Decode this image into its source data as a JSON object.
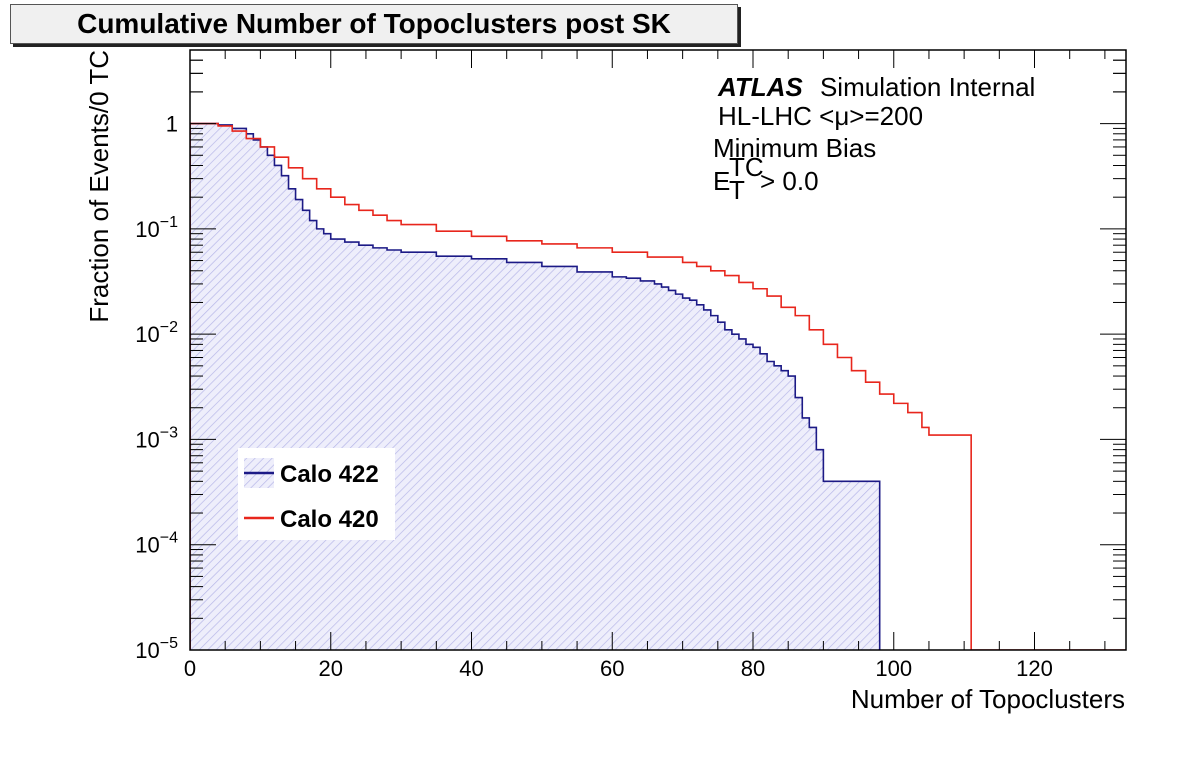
{
  "chart_data": {
    "type": "line",
    "title": "Cumulative Number of Topoclusters post SK",
    "xlabel": "Number of Topoclusters",
    "ylabel": "Fraction of Events/0 TC",
    "xlim": [
      0,
      133
    ],
    "ylim": [
      1e-05,
      5
    ],
    "log_y": true,
    "x_ticks": [
      "0",
      "20",
      "40",
      "60",
      "80",
      "100",
      "120"
    ],
    "x_tick_values": [
      0,
      20,
      40,
      60,
      80,
      100,
      120
    ],
    "y_ticks": [
      {
        "value": 1,
        "base": "1",
        "exp": ""
      },
      {
        "value": 0.1,
        "base": "10",
        "exp": "−1"
      },
      {
        "value": 0.01,
        "base": "10",
        "exp": "−2"
      },
      {
        "value": 0.001,
        "base": "10",
        "exp": "−3"
      },
      {
        "value": 0.0001,
        "base": "10",
        "exp": "−4"
      },
      {
        "value": 1e-05,
        "base": "10",
        "exp": "−5"
      }
    ],
    "annotations": {
      "atlas": "ATLAS",
      "atlas_rest": "Simulation Internal",
      "line2": "HL-LHC <μ>=200",
      "line3": "Minimum Bias",
      "line4_base": "E",
      "line4_sup": "TC",
      "line4_sub": "T",
      "line4_rest": "> 0.0"
    },
    "legend_position": "bottom-left",
    "series": [
      {
        "name": "Calo 422",
        "color": "#1c1a86",
        "fill": "hatched",
        "x": [
          0,
          2,
          4,
          6,
          8,
          9,
          10,
          11,
          12,
          13,
          14,
          15,
          16,
          17,
          18,
          19,
          20,
          22,
          24,
          26,
          28,
          30,
          35,
          40,
          45,
          50,
          55,
          60,
          62,
          64,
          66,
          67,
          68,
          69,
          70,
          71,
          72,
          73,
          74,
          75,
          76,
          77,
          78,
          79,
          80,
          81,
          82,
          83,
          84,
          85,
          86,
          87,
          88,
          89,
          90,
          98
        ],
        "values": [
          1,
          1,
          0.97,
          0.9,
          0.8,
          0.7,
          0.6,
          0.5,
          0.4,
          0.32,
          0.24,
          0.19,
          0.15,
          0.12,
          0.1,
          0.09,
          0.08,
          0.075,
          0.07,
          0.066,
          0.063,
          0.06,
          0.055,
          0.052,
          0.048,
          0.044,
          0.039,
          0.035,
          0.034,
          0.032,
          0.03,
          0.028,
          0.026,
          0.024,
          0.022,
          0.021,
          0.019,
          0.017,
          0.015,
          0.013,
          0.011,
          0.01,
          0.009,
          0.008,
          0.0075,
          0.0065,
          0.0055,
          0.005,
          0.0045,
          0.004,
          0.0025,
          0.0016,
          0.0013,
          0.0008,
          0.0004,
          0.00032
        ]
      },
      {
        "name": "Calo 420",
        "color": "#e8261c",
        "fill": "none",
        "x": [
          0,
          4,
          6,
          8,
          10,
          12,
          14,
          16,
          18,
          20,
          22,
          24,
          26,
          28,
          30,
          35,
          40,
          45,
          50,
          55,
          60,
          65,
          70,
          72,
          74,
          76,
          78,
          80,
          82,
          84,
          86,
          88,
          90,
          92,
          94,
          96,
          98,
          100,
          102,
          104,
          105,
          111
        ],
        "values": [
          1,
          0.95,
          0.85,
          0.72,
          0.6,
          0.48,
          0.38,
          0.3,
          0.24,
          0.2,
          0.17,
          0.15,
          0.135,
          0.12,
          0.11,
          0.095,
          0.085,
          0.077,
          0.072,
          0.066,
          0.06,
          0.054,
          0.048,
          0.044,
          0.04,
          0.036,
          0.031,
          0.027,
          0.023,
          0.018,
          0.015,
          0.011,
          0.008,
          0.006,
          0.0045,
          0.0035,
          0.0027,
          0.0022,
          0.0018,
          0.0013,
          0.0011,
          0.00032
        ]
      }
    ]
  }
}
